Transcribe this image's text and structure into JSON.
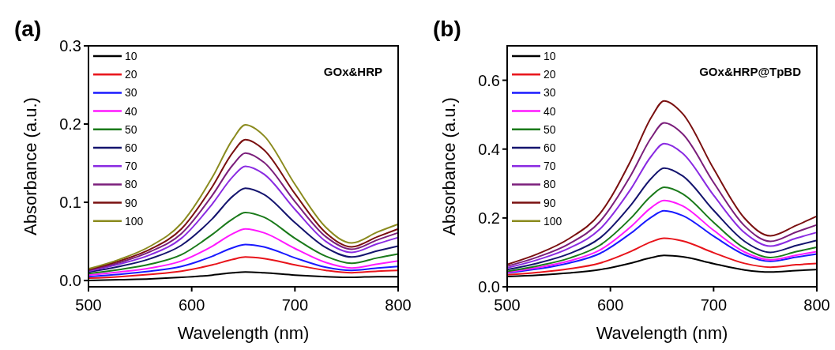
{
  "chart_data": [
    {
      "type": "line",
      "annotations": [
        "(a)",
        "GOx&HRP"
      ],
      "xlabel": "Wavelength (nm)",
      "ylabel": "Absorbance (a.u.)",
      "xlim": [
        500,
        800
      ],
      "xticks": [
        500,
        600,
        700,
        800
      ],
      "ylim": [
        -0.008,
        0.3
      ],
      "yticks": [
        {
          "value": 0,
          "label": "0.0"
        },
        0.1,
        0.2,
        0.3
      ],
      "legend": "top left",
      "line_style": "solid",
      "marker": "none",
      "grid": false,
      "x": [
        500,
        530,
        560,
        590,
        620,
        640,
        652,
        670,
        700,
        730,
        755,
        780,
        800
      ],
      "series": [
        {
          "name": "10",
          "color": "#000000",
          "values": [
            0.0,
            0.001,
            0.002,
            0.004,
            0.007,
            0.01,
            0.011,
            0.01,
            0.007,
            0.005,
            0.004,
            0.005,
            0.005
          ]
        },
        {
          "name": "20",
          "color": "#e8141b",
          "values": [
            0.003,
            0.005,
            0.008,
            0.012,
            0.02,
            0.027,
            0.03,
            0.028,
            0.02,
            0.013,
            0.01,
            0.012,
            0.013
          ]
        },
        {
          "name": "30",
          "color": "#1a1aff",
          "values": [
            0.005,
            0.008,
            0.012,
            0.018,
            0.031,
            0.042,
            0.046,
            0.043,
            0.029,
            0.017,
            0.013,
            0.016,
            0.018
          ]
        },
        {
          "name": "40",
          "color": "#ff19ff",
          "values": [
            0.007,
            0.011,
            0.016,
            0.025,
            0.044,
            0.06,
            0.066,
            0.061,
            0.041,
            0.023,
            0.016,
            0.021,
            0.025
          ]
        },
        {
          "name": "50",
          "color": "#1a7a1a",
          "values": [
            0.009,
            0.014,
            0.021,
            0.033,
            0.059,
            0.079,
            0.087,
            0.081,
            0.054,
            0.031,
            0.022,
            0.029,
            0.034
          ]
        },
        {
          "name": "60",
          "color": "#14146e",
          "values": [
            0.011,
            0.018,
            0.028,
            0.045,
            0.079,
            0.108,
            0.118,
            0.11,
            0.074,
            0.042,
            0.03,
            0.038,
            0.044
          ]
        },
        {
          "name": "70",
          "color": "#8a2be2",
          "values": [
            0.012,
            0.021,
            0.033,
            0.054,
            0.098,
            0.133,
            0.146,
            0.136,
            0.091,
            0.05,
            0.036,
            0.047,
            0.055
          ]
        },
        {
          "name": "80",
          "color": "#7b1f7b",
          "values": [
            0.013,
            0.023,
            0.037,
            0.06,
            0.109,
            0.148,
            0.163,
            0.151,
            0.101,
            0.056,
            0.04,
            0.052,
            0.061
          ]
        },
        {
          "name": "90",
          "color": "#7a1010",
          "values": [
            0.014,
            0.025,
            0.04,
            0.066,
            0.12,
            0.164,
            0.18,
            0.167,
            0.111,
            0.061,
            0.043,
            0.056,
            0.066
          ]
        },
        {
          "name": "100",
          "color": "#8b8b1f",
          "values": [
            0.015,
            0.027,
            0.044,
            0.073,
            0.132,
            0.181,
            0.199,
            0.185,
            0.123,
            0.068,
            0.048,
            0.062,
            0.072
          ]
        }
      ]
    },
    {
      "type": "line",
      "annotations": [
        "(b)",
        "GOx&HRP@TpBD"
      ],
      "xlabel": "Wavelength (nm)",
      "ylabel": "Absorbance (a.u.)",
      "xlim": [
        500,
        800
      ],
      "xticks": [
        500,
        600,
        700,
        800
      ],
      "ylim": [
        0,
        0.7
      ],
      "yticks": [
        {
          "value": 0,
          "label": "0.0"
        },
        0.2,
        0.4,
        0.6
      ],
      "legend": "top left",
      "line_style": "solid",
      "marker": "none",
      "grid": false,
      "x": [
        500,
        530,
        560,
        590,
        620,
        640,
        652,
        670,
        700,
        730,
        755,
        780,
        800
      ],
      "series": [
        {
          "name": "10",
          "color": "#000000",
          "values": [
            0.03,
            0.034,
            0.04,
            0.05,
            0.069,
            0.085,
            0.091,
            0.087,
            0.067,
            0.049,
            0.043,
            0.047,
            0.05
          ]
        },
        {
          "name": "20",
          "color": "#e8141b",
          "values": [
            0.035,
            0.042,
            0.052,
            0.069,
            0.103,
            0.131,
            0.141,
            0.133,
            0.099,
            0.068,
            0.057,
            0.064,
            0.068
          ]
        },
        {
          "name": "30",
          "color": "#1a1aff",
          "values": [
            0.04,
            0.052,
            0.069,
            0.097,
            0.156,
            0.203,
            0.221,
            0.207,
            0.147,
            0.093,
            0.074,
            0.086,
            0.095
          ]
        },
        {
          "name": "40",
          "color": "#ff19ff",
          "values": [
            0.042,
            0.056,
            0.075,
            0.107,
            0.175,
            0.231,
            0.251,
            0.235,
            0.164,
            0.101,
            0.078,
            0.092,
            0.102
          ]
        },
        {
          "name": "50",
          "color": "#1a7a1a",
          "values": [
            0.045,
            0.061,
            0.083,
            0.121,
            0.2,
            0.265,
            0.289,
            0.27,
            0.187,
            0.112,
            0.085,
            0.102,
            0.115
          ]
        },
        {
          "name": "60",
          "color": "#14146e",
          "values": [
            0.05,
            0.069,
            0.096,
            0.142,
            0.238,
            0.316,
            0.345,
            0.322,
            0.222,
            0.132,
            0.1,
            0.12,
            0.135
          ]
        },
        {
          "name": "70",
          "color": "#8a2be2",
          "values": [
            0.055,
            0.079,
            0.112,
            0.168,
            0.285,
            0.381,
            0.416,
            0.388,
            0.266,
            0.157,
            0.118,
            0.141,
            0.158
          ]
        },
        {
          "name": "80",
          "color": "#7b1f7b",
          "values": [
            0.06,
            0.087,
            0.125,
            0.19,
            0.325,
            0.435,
            0.476,
            0.444,
            0.303,
            0.177,
            0.132,
            0.159,
            0.18
          ]
        },
        {
          "name": "90",
          "color": "#7a1010",
          "values": [
            0.065,
            0.096,
            0.14,
            0.213,
            0.368,
            0.494,
            0.54,
            0.503,
            0.343,
            0.199,
            0.148,
            0.178,
            0.205
          ]
        },
        {
          "name": "100",
          "color": "#8b8b1f",
          "values": [
            null,
            null,
            null,
            null,
            null,
            null,
            null,
            null,
            null,
            null,
            null,
            null,
            null
          ]
        }
      ]
    }
  ]
}
